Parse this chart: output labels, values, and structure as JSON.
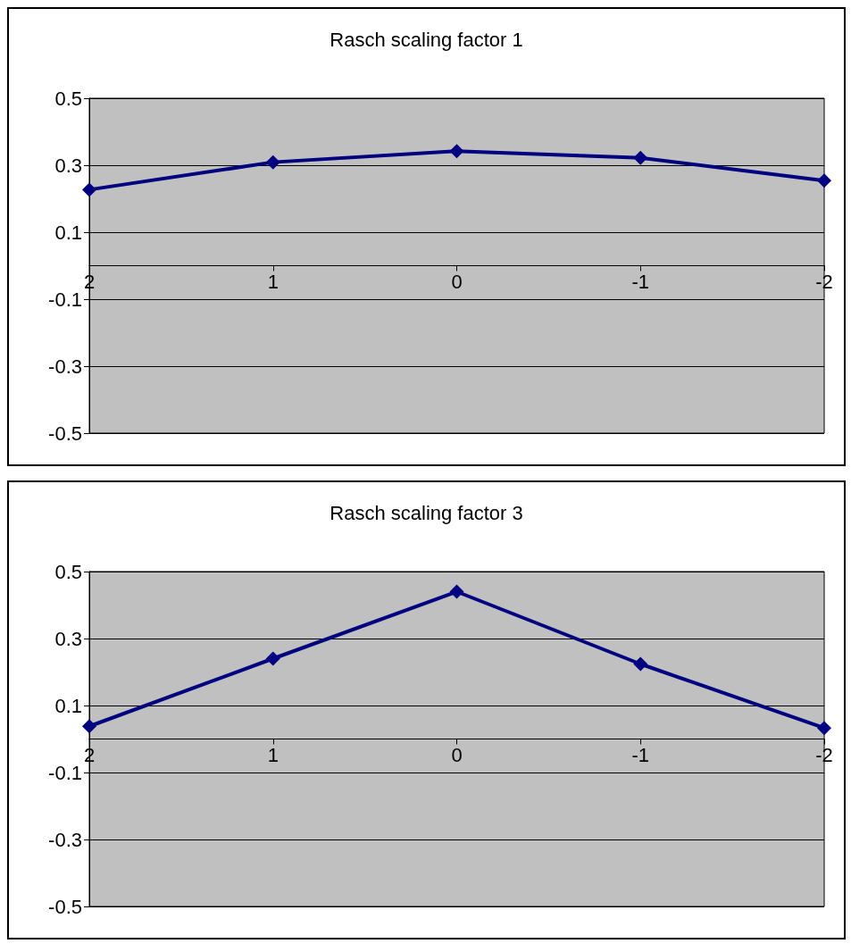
{
  "chart_data": [
    {
      "type": "line",
      "title": "Rasch scaling factor 1",
      "categories": [
        "2",
        "1",
        "0",
        "-1",
        "-2"
      ],
      "series": [
        {
          "color": "#000080",
          "values": [
            0.227,
            0.309,
            0.342,
            0.322,
            0.254
          ]
        }
      ],
      "ylim": [
        -0.5,
        0.5
      ],
      "yticks": [
        0.5,
        0.3,
        0.1,
        -0.1,
        -0.3,
        -0.5
      ],
      "grid": "y",
      "marker": "diamond",
      "line_style": "solid"
    },
    {
      "type": "line",
      "title": "Rasch scaling factor 3",
      "categories": [
        "2",
        "1",
        "0",
        "-1",
        "-2"
      ],
      "series": [
        {
          "color": "#000080",
          "values": [
            0.038,
            0.24,
            0.44,
            0.224,
            0.033
          ]
        }
      ],
      "ylim": [
        -0.5,
        0.5
      ],
      "yticks": [
        0.5,
        0.3,
        0.1,
        -0.1,
        -0.3,
        -0.5
      ],
      "grid": "y",
      "marker": "diamond",
      "line_style": "solid"
    }
  ]
}
